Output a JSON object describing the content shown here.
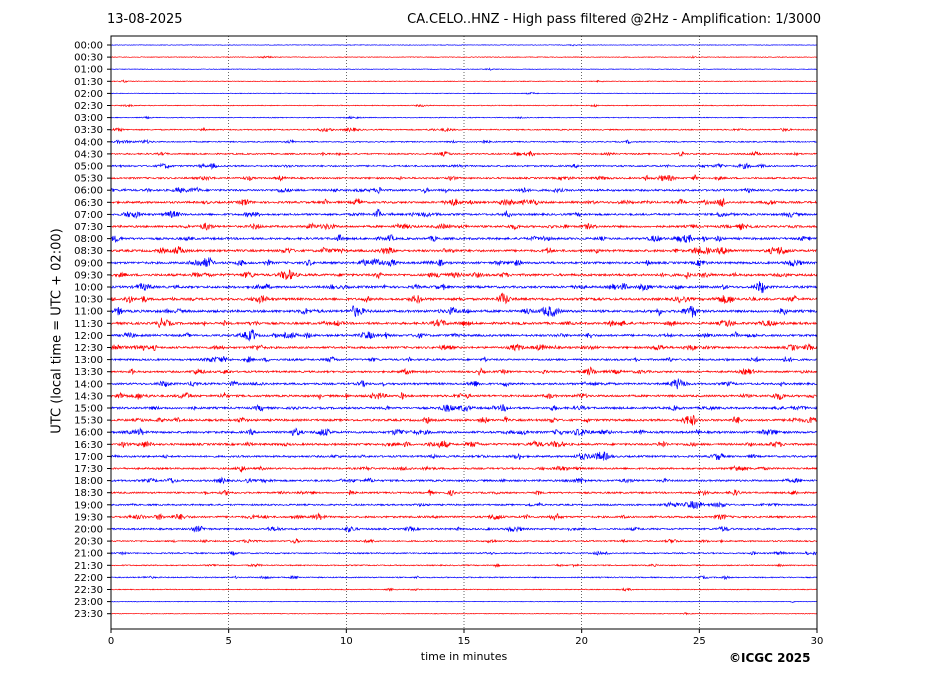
{
  "header": {
    "date": "13-08-2025",
    "title": "CA.CELO..HNZ - High pass filtered @2Hz - Amplification: 1/3000"
  },
  "footer": {
    "copyright": "©ICGC 2025"
  },
  "chart_data": {
    "type": "line",
    "xlabel": "time in minutes",
    "ylabel": "UTC (local time = UTC + 02:00)",
    "xlim": [
      0,
      30
    ],
    "x_ticks": [
      0,
      5,
      10,
      15,
      20,
      25,
      30
    ],
    "grid": "vertical dotted at x ticks",
    "trace_colors": [
      "#0000ff",
      "#ff0000"
    ],
    "rows": [
      "00:00",
      "00:30",
      "01:00",
      "01:30",
      "02:00",
      "02:30",
      "03:00",
      "03:30",
      "04:00",
      "04:30",
      "05:00",
      "05:30",
      "06:00",
      "06:30",
      "07:00",
      "07:30",
      "08:00",
      "08:30",
      "09:00",
      "09:30",
      "10:00",
      "10:30",
      "11:00",
      "11:30",
      "12:00",
      "12:30",
      "13:00",
      "13:30",
      "14:00",
      "14:30",
      "15:00",
      "15:30",
      "16:00",
      "16:30",
      "17:00",
      "17:30",
      "18:00",
      "18:30",
      "19:00",
      "19:30",
      "20:00",
      "20:30",
      "21:00",
      "21:30",
      "22:00",
      "22:30",
      "23:00",
      "23:30"
    ],
    "activity": [
      0.05,
      0.1,
      0.05,
      0.08,
      0.05,
      0.15,
      0.15,
      0.35,
      0.35,
      0.45,
      0.55,
      0.6,
      0.75,
      0.8,
      0.75,
      0.8,
      0.85,
      0.9,
      0.85,
      0.95,
      0.9,
      0.95,
      1.0,
      0.9,
      0.85,
      0.8,
      0.7,
      0.7,
      0.75,
      0.8,
      0.8,
      0.85,
      0.85,
      0.8,
      0.7,
      0.65,
      0.7,
      0.6,
      0.55,
      0.7,
      0.6,
      0.45,
      0.4,
      0.3,
      0.3,
      0.15,
      0.05,
      0.05
    ]
  }
}
